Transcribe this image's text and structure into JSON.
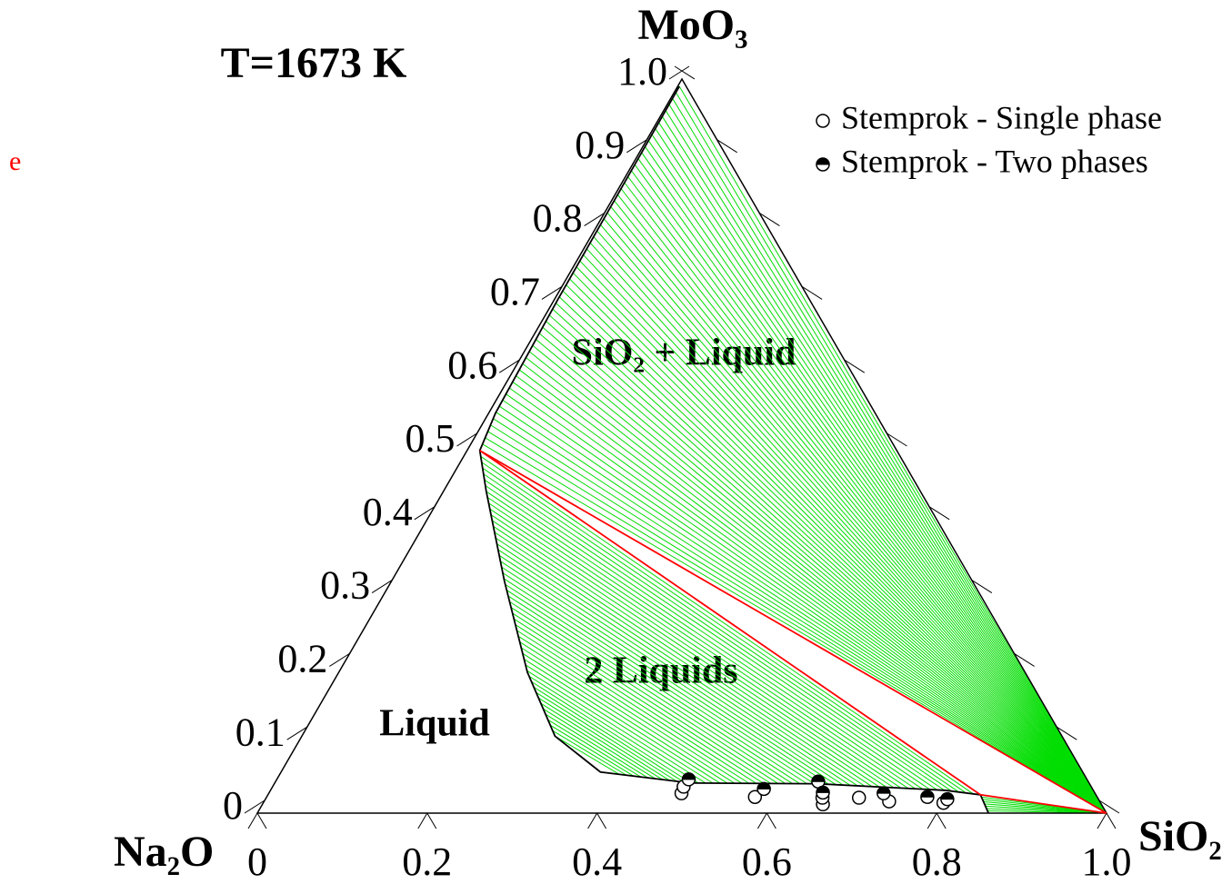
{
  "chart_data": {
    "type": "ternary",
    "title": "T=1673 K",
    "margin_text": "e",
    "apex_labels": {
      "top": "MoO₃",
      "right": "SiO₂",
      "left": "Na₂O"
    },
    "region_labels": [
      "SiO₂ + Liquid",
      "2 Liquids",
      "Liquid"
    ],
    "xlim": [
      0,
      1
    ],
    "ylim": [
      0,
      1
    ],
    "xticks": [
      0,
      0.2,
      0.4,
      0.6,
      0.8,
      {
        "value": 1,
        "label": "1.0"
      }
    ],
    "yticks": [
      0,
      0.1,
      0.2,
      0.3,
      0.4,
      0.5,
      0.6,
      0.7,
      0.8,
      0.9,
      {
        "value": 1,
        "label": "1.0"
      }
    ],
    "series": [
      {
        "name": "Stemprok - Single phase",
        "marker": "open",
        "color": "#000000",
        "x": [
          0.486,
          0.484,
          0.575,
          0.66,
          0.655,
          0.698,
          0.736,
          0.801
        ],
        "values": [
          0.027,
          0.036,
          0.022,
          0.012,
          0.021,
          0.021,
          0.016,
          0.014
        ]
      },
      {
        "name": "Stemprok - Two phases",
        "marker": "half",
        "color": "#000000",
        "x": [
          0.485,
          0.58,
          0.639,
          0.652,
          0.724,
          0.778,
          0.803
        ],
        "values": [
          0.046,
          0.033,
          0.043,
          0.028,
          0.027,
          0.022,
          0.019
        ]
      }
    ],
    "lines": [
      {
        "color": "#000000",
        "x": [
          0.002,
          0.004,
          0.008,
          0.015,
          0.05,
          0.133,
          0.222,
          0.298,
          0.376,
          0.49,
          0.64,
          0.795,
          0.839,
          0.861
        ],
        "values": [
          0.99,
          0.7,
          0.545,
          0.494,
          0.439,
          0.316,
          0.192,
          0.105,
          0.056,
          0.041,
          0.04,
          0.031,
          0.025,
          0
        ]
      },
      {
        "color": "#ff0000",
        "x": [
          0.015,
          0.839,
          1,
          0.015
        ],
        "values": [
          0.494,
          0.025,
          0,
          0.494
        ]
      }
    ],
    "tie_color": "#00dd00"
  }
}
